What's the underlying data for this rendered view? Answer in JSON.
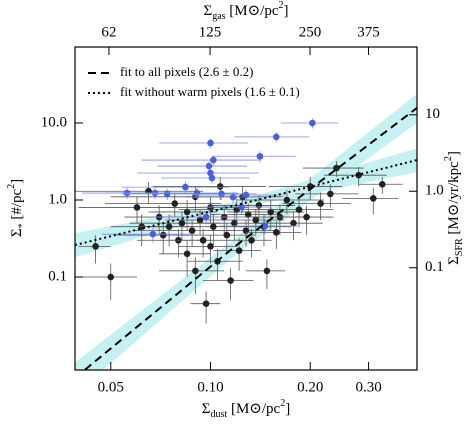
{
  "chart_data": {
    "type": "scatter",
    "x_label": [
      "Σ",
      "dust",
      " [M⊙/pc",
      "2",
      "]"
    ],
    "x2_label": [
      "Σ",
      "gas",
      " [M⊙/pc",
      "2",
      "]"
    ],
    "y_label": [
      "Σ",
      "*",
      " [#/pc",
      "2",
      "]"
    ],
    "y2_label": [
      "Σ",
      "SFR",
      " [M⊙/yr/kpc",
      "2",
      "]"
    ],
    "log_x": true,
    "log_y": true,
    "xlim": [
      0.039,
      0.42
    ],
    "xticks": [
      0.05,
      {
        "value": 0.1,
        "label": "0.10"
      },
      {
        "value": 0.2,
        "label": "0.20"
      },
      {
        "value": 0.3,
        "label": "0.30"
      }
    ],
    "x2lim": [
      49,
      525
    ],
    "x2ticks": [
      62,
      125,
      250,
      375
    ],
    "ylim": [
      0.0062,
      97
    ],
    "yticks": [
      {
        "value": 10,
        "label": "10.0"
      },
      {
        "value": 1,
        "label": "1.0"
      },
      0.1
    ],
    "y2lim": [
      0.0046,
      77
    ],
    "y2ticks": [
      10,
      {
        "value": 1,
        "label": "1.0"
      },
      0.1
    ],
    "series": [
      {
        "color": "#222222",
        "bar_color": "#555555",
        "x": [
          0.045,
          0.062,
          0.065,
          0.07,
          0.072,
          0.075,
          0.078,
          0.08,
          0.082,
          0.085,
          0.085,
          0.088,
          0.09,
          0.09,
          0.093,
          0.095,
          0.097,
          0.1,
          0.1,
          0.102,
          0.105,
          0.107,
          0.11,
          0.112,
          0.115,
          0.118,
          0.12,
          0.122,
          0.125,
          0.128,
          0.13,
          0.133,
          0.137,
          0.14,
          0.145,
          0.148,
          0.152,
          0.158,
          0.162,
          0.17,
          0.178,
          0.185,
          0.195,
          0.2,
          0.215,
          0.23,
          0.24,
          0.28,
          0.31,
          0.33,
          0.06,
          0.05
        ],
        "y": [
          0.25,
          0.45,
          1.3,
          0.6,
          0.35,
          0.45,
          0.9,
          0.3,
          0.5,
          0.7,
          0.2,
          0.4,
          0.12,
          1.1,
          0.55,
          0.3,
          0.045,
          0.8,
          0.25,
          0.45,
          0.16,
          1.5,
          0.6,
          0.35,
          0.09,
          0.5,
          0.75,
          0.22,
          1.1,
          0.4,
          0.65,
          0.3,
          0.55,
          0.85,
          0.45,
          0.12,
          0.7,
          0.38,
          0.6,
          1.0,
          0.5,
          0.75,
          0.6,
          1.5,
          0.9,
          1.2,
          2.6,
          2.1,
          1.05,
          1.6,
          0.8,
          0.1
        ],
        "xerr": [
          0.005,
          0.012,
          0.03,
          0.015,
          0.02,
          0.015,
          0.03,
          0.02,
          0.025,
          0.02,
          0.015,
          0.03,
          0.02,
          0.04,
          0.02,
          0.02,
          0.01,
          0.03,
          0.02,
          0.025,
          0.02,
          0.04,
          0.03,
          0.025,
          0.02,
          0.03,
          0.04,
          0.02,
          0.04,
          0.03,
          0.03,
          0.02,
          0.03,
          0.04,
          0.03,
          0.02,
          0.04,
          0.03,
          0.04,
          0.05,
          0.04,
          0.05,
          0.04,
          0.05,
          0.05,
          0.05,
          0.05,
          0.06,
          0.06,
          0.05,
          0.02,
          0.01
        ],
        "yerr": [
          0.1,
          0.2,
          0.4,
          0.25,
          0.15,
          0.2,
          0.3,
          0.12,
          0.2,
          0.3,
          0.1,
          0.15,
          0.06,
          0.4,
          0.2,
          0.12,
          0.02,
          0.3,
          0.1,
          0.2,
          0.07,
          0.5,
          0.25,
          0.15,
          0.04,
          0.2,
          0.3,
          0.1,
          0.4,
          0.15,
          0.25,
          0.12,
          0.2,
          0.3,
          0.2,
          0.05,
          0.3,
          0.15,
          0.25,
          0.35,
          0.2,
          0.3,
          0.25,
          0.5,
          0.35,
          0.4,
          0.6,
          0.6,
          0.4,
          0.4,
          0.3,
          0.05
        ]
      },
      {
        "color": "#4a5fd9",
        "bar_color": "#7b8be0",
        "x": [
          0.203,
          0.158,
          0.1,
          0.102,
          0.099,
          0.1,
          0.101,
          0.141,
          0.084,
          0.056,
          0.068,
          0.074,
          0.091,
          0.108,
          0.117,
          0.128,
          0.097,
          0.067,
          0.146,
          0.124
        ],
        "y": [
          10.0,
          6.6,
          5.5,
          3.3,
          2.76,
          2.24,
          1.93,
          3.7,
          1.47,
          1.23,
          1.23,
          1.2,
          1.23,
          1.2,
          1.09,
          1.16,
          0.6,
          0.36,
          0.46,
          0.81
        ],
        "xerr": [
          0.04,
          0.04,
          0.03,
          0.04,
          0.03,
          0.04,
          0.03,
          0.04,
          0.03,
          0.015,
          0.02,
          0.02,
          0.03,
          0.03,
          0.03,
          0.04,
          0.03,
          0.02,
          0.04,
          0.03
        ],
        "yerr": [
          1.5,
          1.0,
          0.8,
          0.5,
          0.4,
          0.35,
          0.3,
          0.6,
          0.25,
          0.2,
          0.2,
          0.2,
          0.2,
          0.2,
          0.2,
          0.2,
          0.12,
          0.08,
          0.1,
          0.15
        ]
      }
    ],
    "fits": [
      {
        "label": "fit to all pixels (2.6 ± 0.2)",
        "style": "dashed",
        "color": "#000000",
        "band_color": "#c6f1f2",
        "x": [
          0.039,
          0.12,
          0.42
        ],
        "y": [
          0.0049,
          0.26,
          15.7
        ],
        "band_lower": [
          0.003,
          0.2,
          10
        ],
        "band_upper": [
          0.0078,
          0.33,
          24
        ]
      },
      {
        "label": "fit without warm pixels (1.6 ± 0.1)",
        "style": "dotted",
        "color": "#000000",
        "band_color": "#c6f1f2",
        "x": [
          0.039,
          0.12,
          0.42
        ],
        "y": [
          0.26,
          0.86,
          3.3
        ],
        "band_lower": [
          0.18,
          0.77,
          2.3
        ],
        "band_upper": [
          0.37,
          0.96,
          4.7
        ]
      }
    ]
  }
}
